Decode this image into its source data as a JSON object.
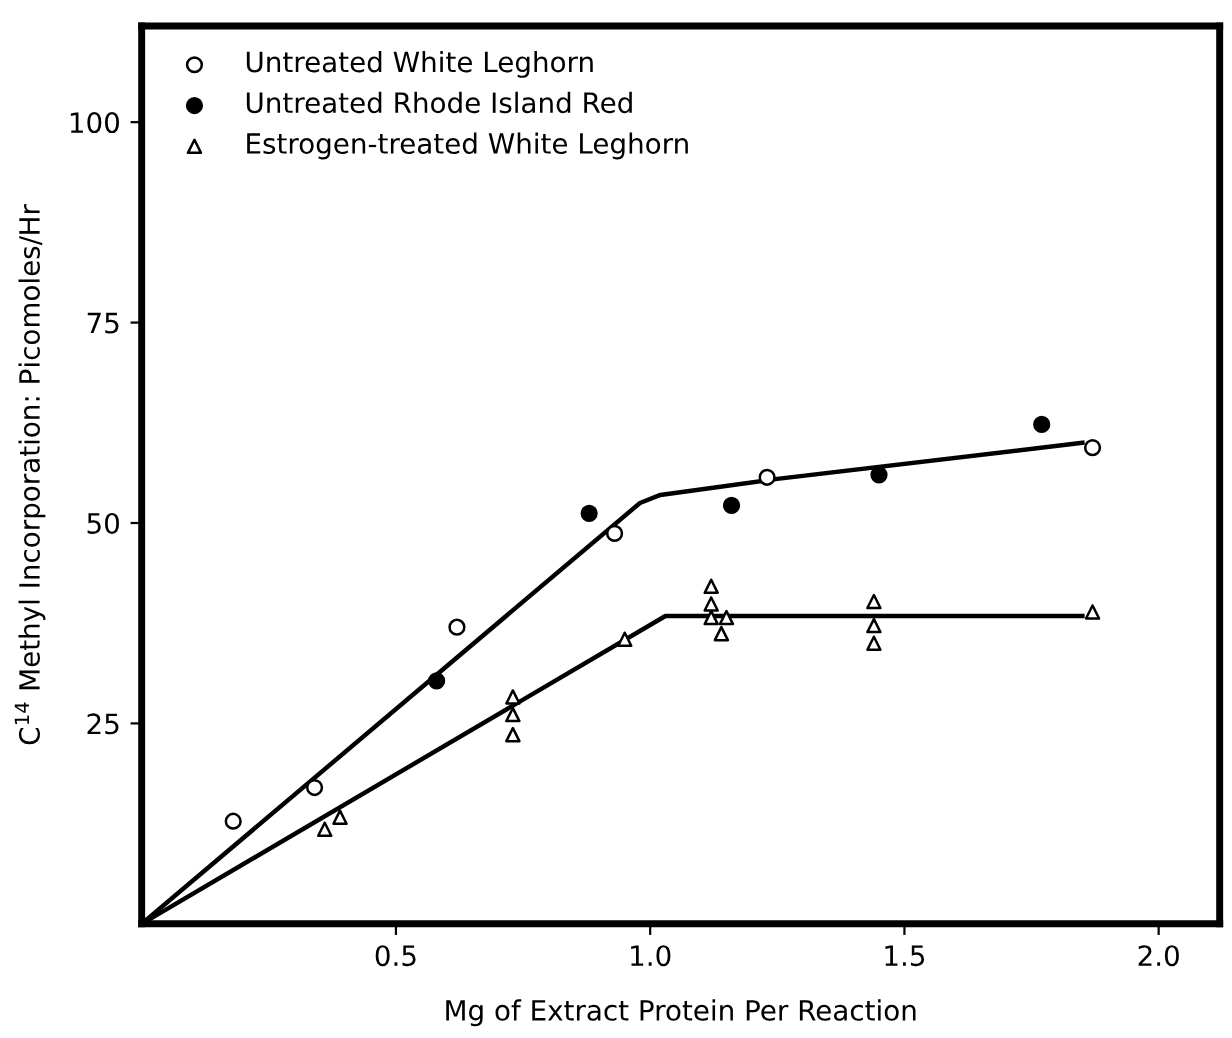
{
  "chart_data": {
    "type": "scatter",
    "xlabel": "Mg of Extract Protein Per Reaction",
    "ylabel": "C$^{14}$ Methyl Incorporation: Picomoles/Hr",
    "xlim": [
      0,
      2.12
    ],
    "ylim": [
      0,
      112
    ],
    "xticks": [
      {
        "value": 0.5,
        "label": "0.5"
      },
      {
        "value": 1.0,
        "label": "1.0"
      },
      {
        "value": 1.5,
        "label": "1.5"
      },
      {
        "value": 2.0,
        "label": "2.0"
      }
    ],
    "yticks": [
      25,
      50,
      75,
      100
    ],
    "grid": false,
    "legend": "top left",
    "series": [
      {
        "name": "Untreated White Leghorn",
        "color": "#000000",
        "marker": "circle",
        "x": [
          0.18,
          0.34,
          0.62,
          0.93,
          1.23,
          1.87
        ],
        "values": [
          12.8,
          17,
          37,
          48.7,
          55.7,
          59.4
        ]
      },
      {
        "name": "Untreated Rhode Island Red",
        "color": "#000000",
        "marker": "circle",
        "x": [
          0.58,
          0.88,
          1.16,
          1.45,
          1.77
        ],
        "values": [
          30.3,
          51.2,
          52.2,
          56,
          62.3
        ]
      },
      {
        "name": "Estrogen-treated White Leghorn",
        "color": "#000000",
        "marker": "triangle",
        "x": [
          0.36,
          0.39,
          0.73,
          0.73,
          0.73,
          0.95,
          1.12,
          1.12,
          1.12,
          1.15,
          1.14,
          1.44,
          1.44,
          1.44,
          1.87
        ],
        "values": [
          11.8,
          13.3,
          28.3,
          26.1,
          23.6,
          35.5,
          42.1,
          39.9,
          38.2,
          38.2,
          36.2,
          40.2,
          37.2,
          35,
          38.9
        ]
      },
      {
        "type": "line",
        "color": "#000000",
        "line_style": "solid",
        "x": [
          0,
          0.98,
          1.02,
          1.25,
          1.85
        ],
        "values": [
          0,
          52.5,
          53.5,
          55.5,
          60
        ]
      },
      {
        "type": "line",
        "color": "#000000",
        "line_style": "solid",
        "x": [
          0,
          1.03,
          1.85
        ],
        "values": [
          0,
          38.4,
          38.4
        ]
      }
    ]
  }
}
